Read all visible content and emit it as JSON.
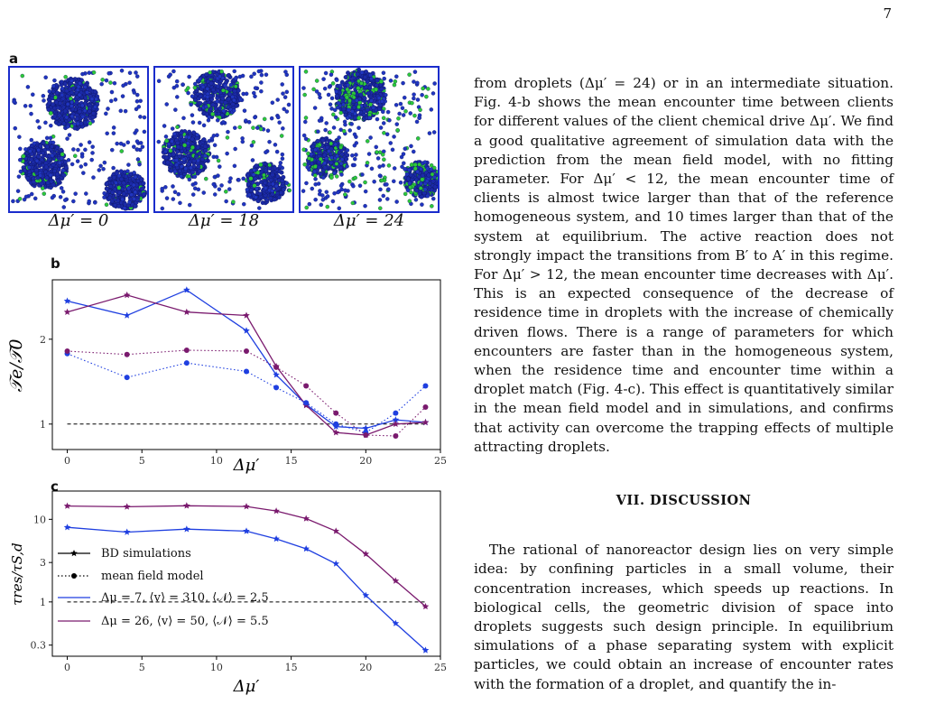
{
  "page_number": "7",
  "panel_a": {
    "letter": "a",
    "captions": [
      "Δμ′ = 0",
      "Δμ′ = 18",
      "Δμ′ = 24"
    ]
  },
  "panel_b": {
    "letter": "b",
    "ylabel": "𝒯e/𝒯0",
    "xlabel": "Δμ′"
  },
  "panel_c": {
    "letter": "c",
    "ylabel": "τres/τS,d",
    "xlabel": "Δμ′",
    "legend": [
      "BD simulations",
      "mean field model",
      "Δμ = 7, ⟨v⟩ = 310, ⟨𝒩⟩ = 2.5",
      "Δμ = 26, ⟨v⟩ = 50, ⟨𝒩⟩ = 5.5"
    ]
  },
  "chart_data": [
    {
      "type": "line",
      "panel": "b",
      "xlabel": "Δμ′",
      "ylabel": "𝒯e/𝒯0",
      "xlim": [
        -1,
        25
      ],
      "ylim": [
        0.7,
        2.7
      ],
      "xticks": [
        0,
        5,
        10,
        15,
        20,
        25
      ],
      "yticks": [
        1,
        2
      ],
      "reference_line": 1,
      "x": [
        0,
        4,
        8,
        12,
        14,
        16,
        18,
        20,
        22,
        24
      ],
      "series": [
        {
          "style": "solid-star",
          "color": "#1f3fe0",
          "values": [
            2.45,
            2.28,
            2.58,
            2.1,
            1.58,
            1.23,
            0.97,
            0.95,
            1.05,
            1.02
          ]
        },
        {
          "style": "solid-star",
          "color": "#7a1a6e",
          "values": [
            2.32,
            2.52,
            2.32,
            2.28,
            1.68,
            1.22,
            0.9,
            0.87,
            1.0,
            1.02
          ]
        },
        {
          "style": "dotted-dot",
          "color": "#1f3fe0",
          "values": [
            1.83,
            1.55,
            1.72,
            1.62,
            1.43,
            1.25,
            1.0,
            0.9,
            1.13,
            1.45
          ]
        },
        {
          "style": "dotted-dot",
          "color": "#7a1a6e",
          "values": [
            1.86,
            1.82,
            1.87,
            1.86,
            1.67,
            1.45,
            1.13,
            0.87,
            0.86,
            1.2
          ]
        }
      ]
    },
    {
      "type": "line",
      "panel": "c",
      "xlabel": "Δμ′",
      "ylabel": "τres/τS,d",
      "yscale": "log",
      "xlim": [
        -1,
        25
      ],
      "ylim": [
        0.22,
        22
      ],
      "xticks": [
        0,
        5,
        10,
        15,
        20,
        25
      ],
      "yticks": [
        0.3,
        1,
        3,
        10
      ],
      "reference_line": 1,
      "x": [
        0,
        4,
        8,
        12,
        14,
        16,
        18,
        20,
        22,
        24
      ],
      "series": [
        {
          "name": "Δμ = 7, ⟨v⟩ = 310, ⟨𝒩⟩ = 2.5",
          "color": "#1f3fe0",
          "values": [
            8.0,
            7.0,
            7.6,
            7.2,
            5.8,
            4.4,
            2.9,
            1.2,
            0.55,
            0.26
          ]
        },
        {
          "name": "Δμ = 26, ⟨v⟩ = 50, ⟨𝒩⟩ = 5.5",
          "color": "#7a1a6e",
          "values": [
            14.5,
            14.2,
            14.6,
            14.3,
            12.6,
            10.2,
            7.2,
            3.8,
            1.8,
            0.88
          ]
        }
      ]
    }
  ],
  "body": {
    "p1": "from droplets (Δμ′ = 24) or in an intermediate situation. Fig. 4-b shows the mean encounter time between clients for different values of the client chemical drive Δμ′. We find a good qualitative agreement of simulation data with the prediction from the mean field model, with no fitting parameter. For Δμ′ < 12, the mean encounter time of clients is almost twice larger than that of the reference homogeneous system, and 10 times larger than that of the system at equilibrium. The active reaction does not strongly impact the transitions from B′ to A′ in this regime. For Δμ′ > 12, the mean encounter time decreases with Δμ′. This is an expected consequence of the decrease of residence time in droplets with the increase of chemically driven flows. There is a range of parameters for which encounters are faster than in the homogeneous system, when the residence time and encounter time within a droplet match (Fig. 4-c). This effect is quantitatively similar in the mean field model and in simulations, and confirms that activity can overcome the trapping effects of multiple attracting droplets.",
    "section_title": "VII.   DISCUSSION",
    "p2": "The rational of nanoreactor design lies on very simple idea: by confining particles in a small volume, their concentration increases, which speeds up reactions. In biological cells, the geometric division of space into droplets suggests such design principle. In equilibrium simulations of a phase separating system with explicit particles, we could obtain an increase of encounter rates with the formation of a droplet, and quantify the in-"
  }
}
